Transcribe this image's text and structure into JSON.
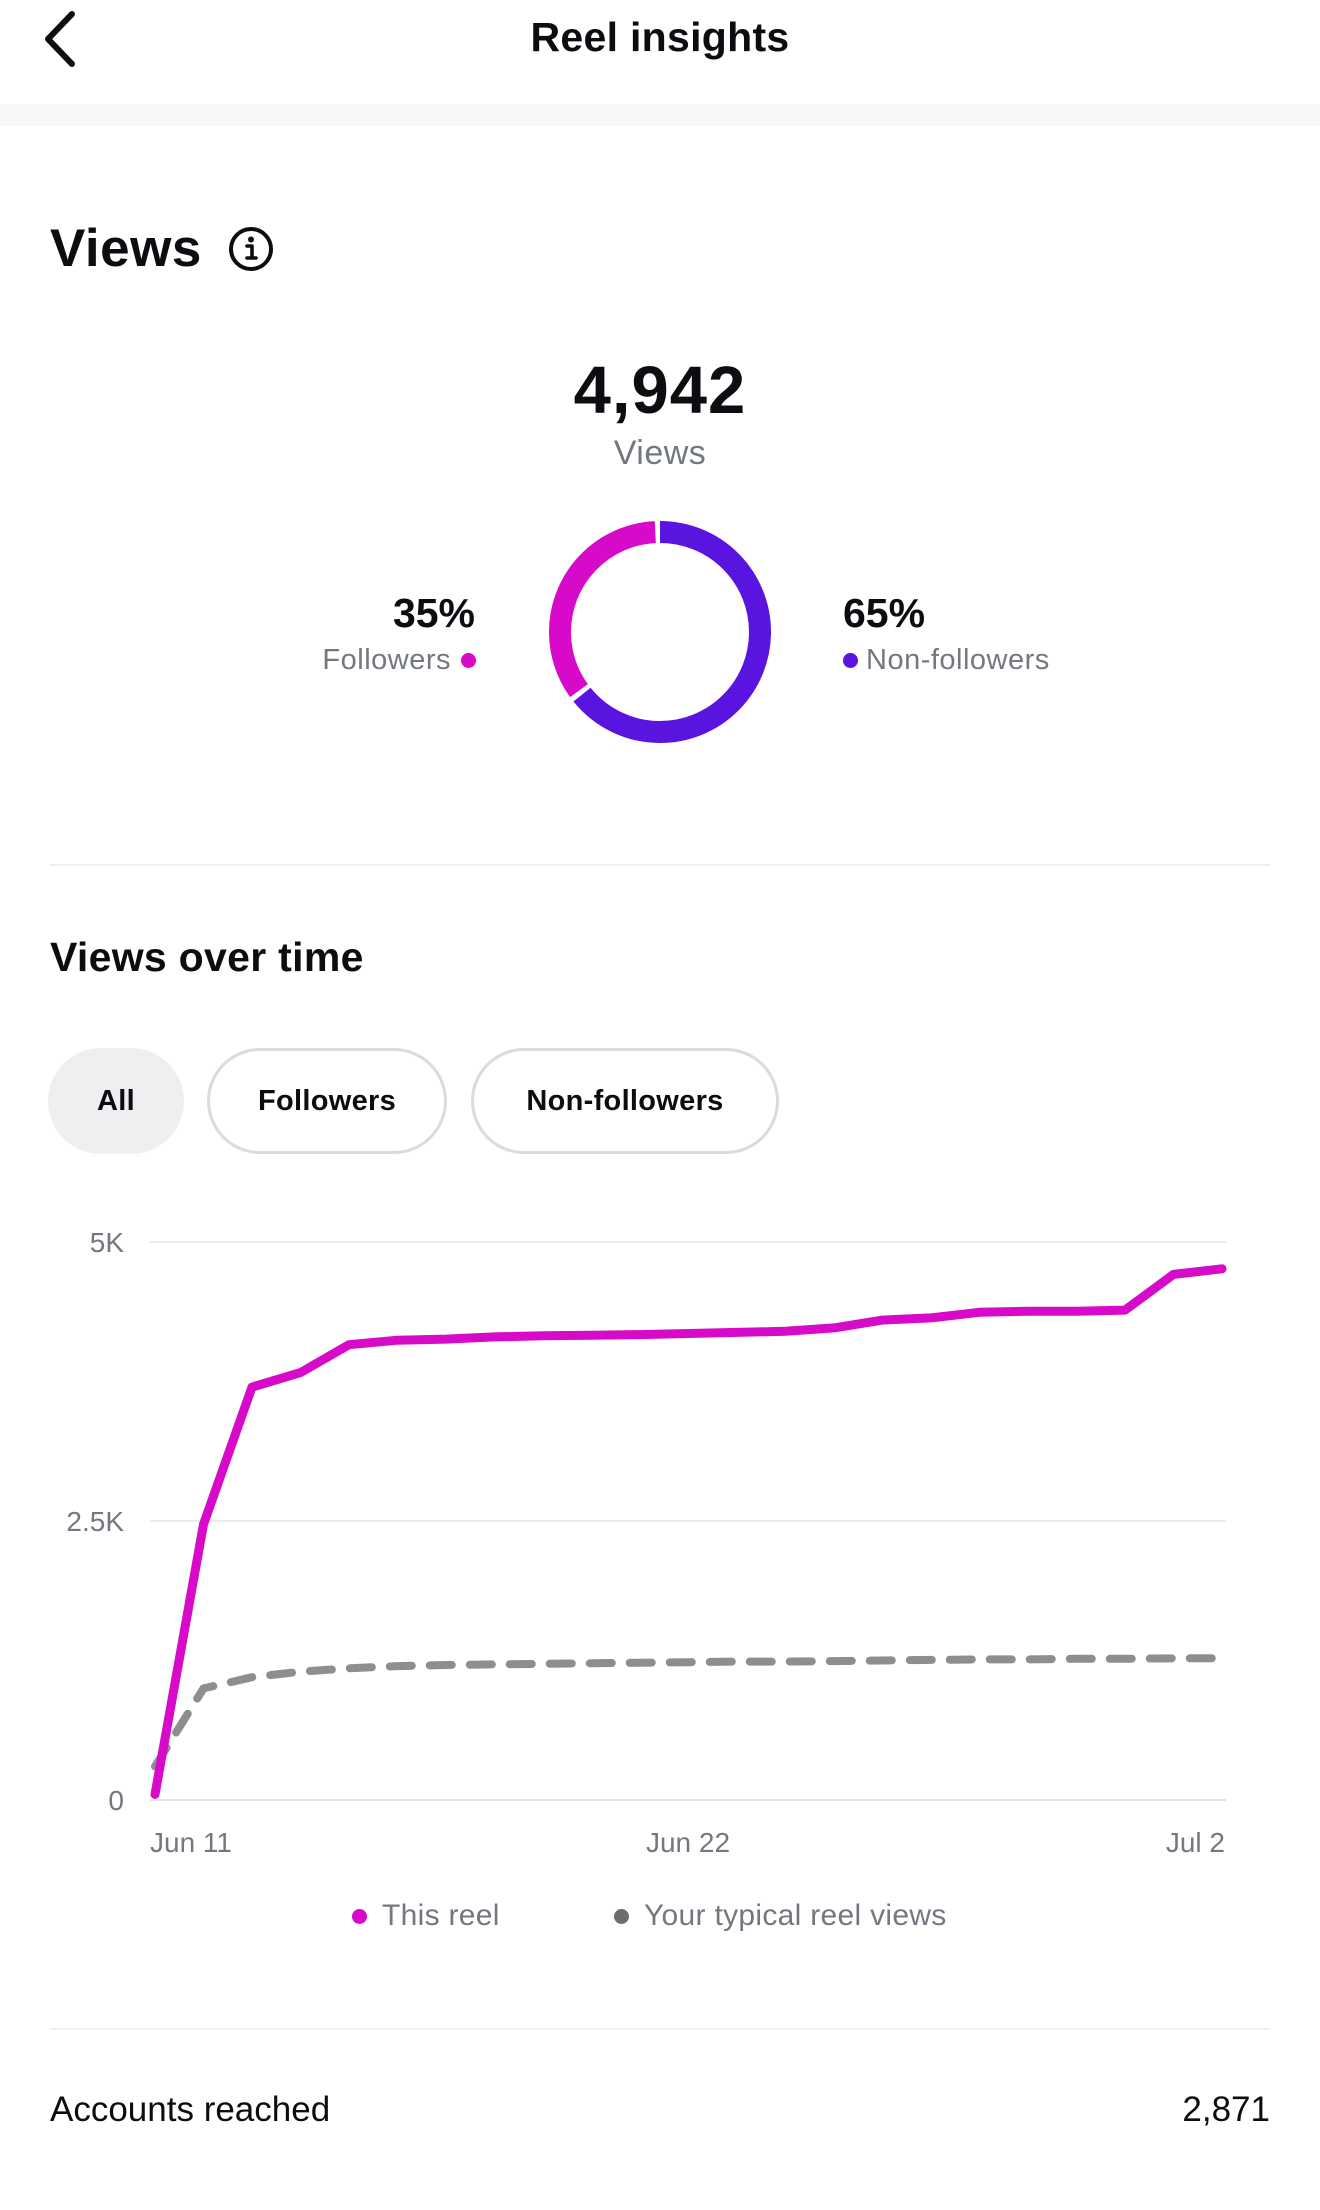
{
  "header": {
    "title": "Reel insights",
    "back_icon": "chevron-left-icon"
  },
  "views": {
    "section_title": "Views",
    "info_icon": "info-icon",
    "total": "4,942",
    "total_label": "Views",
    "followers": {
      "pct": "35%",
      "label": "Followers",
      "fraction": 0.35,
      "color": "#d60ac8"
    },
    "non_followers": {
      "pct": "65%",
      "label": "Non-followers",
      "fraction": 0.65,
      "color": "#5a14e0"
    }
  },
  "views_over_time": {
    "title": "Views over time",
    "filters": [
      {
        "label": "All",
        "active": true
      },
      {
        "label": "Followers",
        "active": false
      },
      {
        "label": "Non-followers",
        "active": false
      }
    ],
    "legend": {
      "this_reel": "This reel",
      "typical": "Your typical reel views"
    }
  },
  "chart_data": {
    "type": "line",
    "x_tick_labels": [
      "Jun 11",
      "Jun 22",
      "Jul 2"
    ],
    "y_tick_labels": [
      "0",
      "2.5K",
      "5K"
    ],
    "ylim": [
      0,
      5000
    ],
    "grid": true,
    "legend_placement": "bottom",
    "x_days": [
      0,
      1,
      2,
      3,
      4,
      5,
      6,
      7,
      8,
      9,
      10,
      11,
      12,
      13,
      14,
      15,
      16,
      17,
      18,
      19,
      20,
      21,
      22
    ],
    "series": [
      {
        "name": "This reel",
        "color": "#d60ac8",
        "style": "solid",
        "values": [
          50,
          2470,
          3700,
          3830,
          4080,
          4120,
          4130,
          4150,
          4160,
          4165,
          4170,
          4180,
          4190,
          4200,
          4230,
          4300,
          4320,
          4370,
          4380,
          4380,
          4390,
          4710,
          4760
        ]
      },
      {
        "name": "Your typical reel views",
        "color": "#8e8e90",
        "style": "dashed",
        "values": [
          300,
          1000,
          1100,
          1150,
          1180,
          1200,
          1210,
          1215,
          1220,
          1225,
          1230,
          1235,
          1240,
          1240,
          1245,
          1250,
          1255,
          1260,
          1260,
          1265,
          1265,
          1270,
          1270
        ]
      }
    ]
  },
  "accounts_reached": {
    "label": "Accounts reached",
    "value": "2,871"
  }
}
